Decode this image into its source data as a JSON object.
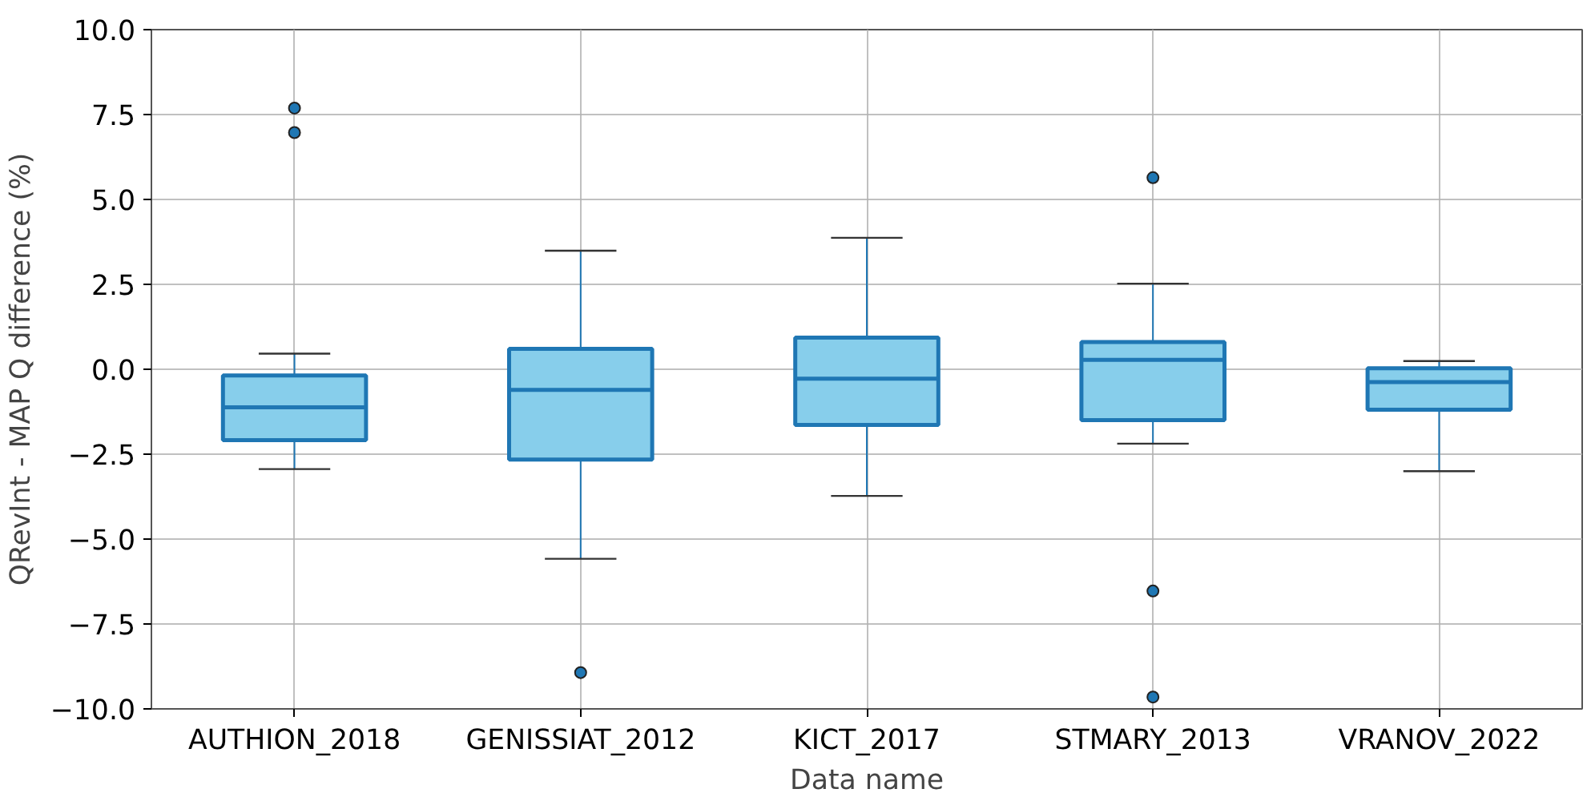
{
  "chart_data": {
    "type": "box",
    "xlabel": "Data name",
    "ylabel": "QRevInt - MAP Q difference (%)",
    "categories": [
      "AUTHION_2018",
      "GENISSIAT_2012",
      "KICT_2017",
      "STMARY_2013",
      "VRANOV_2022"
    ],
    "series": [
      {
        "color": "#87ceeb",
        "boxes": [
          {
            "low": -2.94,
            "q1": -2.09,
            "median": -1.12,
            "q3": -0.18,
            "high": 0.46,
            "outliers": [
              7.69,
              6.97
            ]
          },
          {
            "low": -5.58,
            "q1": -2.66,
            "median": -0.61,
            "q3": 0.6,
            "high": 3.49,
            "outliers": [
              -8.93
            ]
          },
          {
            "low": -3.73,
            "q1": -1.64,
            "median": -0.28,
            "q3": 0.93,
            "high": 3.87
          },
          {
            "low": -2.19,
            "q1": -1.5,
            "median": 0.28,
            "q3": 0.8,
            "high": 2.52,
            "outliers": [
              5.64,
              -6.53,
              -9.65
            ]
          },
          {
            "low": -3.0,
            "q1": -1.19,
            "median": -0.38,
            "q3": 0.03,
            "high": 0.24
          }
        ]
      }
    ],
    "ylim": [
      -10,
      10
    ],
    "yticks": [
      {
        "value": -10,
        "label": "−10.0"
      },
      {
        "value": -7.5,
        "label": "−7.5"
      },
      {
        "value": -5,
        "label": "−5.0"
      },
      {
        "value": -2.5,
        "label": "−2.5"
      },
      {
        "value": 0,
        "label": "0.0"
      },
      {
        "value": 2.5,
        "label": "2.5"
      },
      {
        "value": 5,
        "label": "5.0"
      },
      {
        "value": 7.5,
        "label": "7.5"
      },
      {
        "value": 10,
        "label": "10.0"
      }
    ],
    "grid": true
  }
}
